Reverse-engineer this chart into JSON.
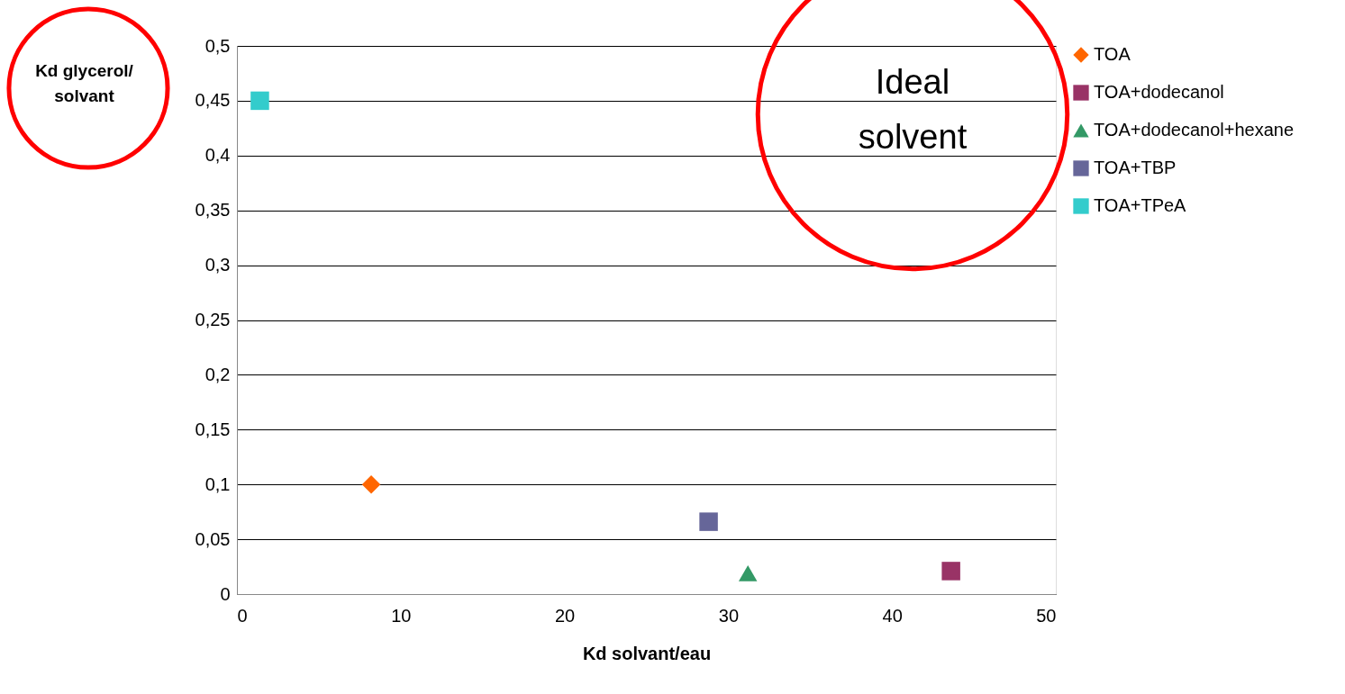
{
  "chart_data": {
    "type": "scatter",
    "xlabel": "Kd solvant/eau",
    "ylabel": "Kd glycerol/\nsolvant",
    "xlim": [
      0,
      50
    ],
    "xticks": [
      0,
      10,
      20,
      30,
      40,
      50
    ],
    "ylim": [
      0,
      0.5
    ],
    "yticks": [
      {
        "value": 0,
        "label": "0"
      },
      {
        "value": 0.05,
        "label": "0,05"
      },
      {
        "value": 0.1,
        "label": "0,1"
      },
      {
        "value": 0.15,
        "label": "0,15"
      },
      {
        "value": 0.2,
        "label": "0,2"
      },
      {
        "value": 0.25,
        "label": "0,25"
      },
      {
        "value": 0.3,
        "label": "0,3"
      },
      {
        "value": 0.35,
        "label": "0,35"
      },
      {
        "value": 0.4,
        "label": "0,4"
      },
      {
        "value": 0.45,
        "label": "0,45"
      },
      {
        "value": 0.5,
        "label": "0,5"
      }
    ],
    "grid": "y",
    "legend": "right",
    "annotations": [
      "Ideal\nsolvent"
    ],
    "series": [
      {
        "name": "TOA",
        "color": "#ff6600",
        "marker": "diamond",
        "x": [
          8.2
        ],
        "values": [
          0.1
        ]
      },
      {
        "name": "TOA+dodecanol",
        "color": "#993366",
        "marker": "square",
        "x": [
          43.6
        ],
        "values": [
          0.021
        ]
      },
      {
        "name": "TOA+dodecanol+hexane",
        "color": "#339966",
        "marker": "triangle",
        "x": [
          31.2
        ],
        "values": [
          0.019
        ]
      },
      {
        "name": "TOA+TBP",
        "color": "#666699",
        "marker": "square",
        "x": [
          28.8
        ],
        "values": [
          0.066
        ]
      },
      {
        "name": "TOA+TPeA",
        "color": "#33cccc",
        "marker": "square",
        "x": [
          1.4
        ],
        "values": [
          0.45
        ]
      }
    ]
  }
}
